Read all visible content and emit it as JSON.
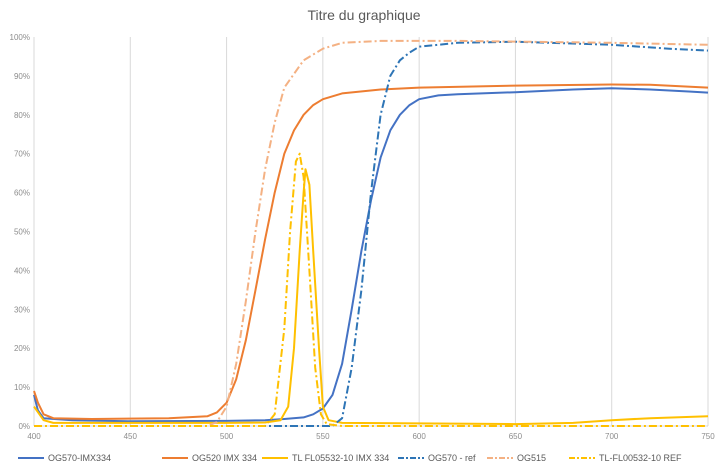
{
  "chart_data": {
    "type": "line",
    "title": "Titre du graphique",
    "xlabel": "",
    "ylabel": "",
    "xlim": [
      400,
      750
    ],
    "ylim": [
      0,
      100
    ],
    "x_ticks": [
      "400",
      "450",
      "500",
      "550",
      "600",
      "650",
      "700",
      "750"
    ],
    "y_ticks": [
      "0%",
      "10%",
      "20%",
      "30%",
      "40%",
      "50%",
      "60%",
      "70%",
      "80%",
      "90%",
      "100%"
    ],
    "grid": "vertical",
    "legend_position": "bottom",
    "series": [
      {
        "name": "OG570-IMX334",
        "color": "#4472c4",
        "dash": "solid",
        "points": [
          [
            400,
            8
          ],
          [
            402,
            4
          ],
          [
            405,
            2
          ],
          [
            420,
            1.5
          ],
          [
            450,
            1.2
          ],
          [
            500,
            1.3
          ],
          [
            520,
            1.5
          ],
          [
            530,
            1.8
          ],
          [
            540,
            2.2
          ],
          [
            545,
            3
          ],
          [
            550,
            4.5
          ],
          [
            555,
            8
          ],
          [
            560,
            16
          ],
          [
            565,
            30
          ],
          [
            570,
            45
          ],
          [
            575,
            58
          ],
          [
            580,
            69
          ],
          [
            585,
            76
          ],
          [
            590,
            80
          ],
          [
            595,
            82.5
          ],
          [
            600,
            84
          ],
          [
            610,
            85
          ],
          [
            620,
            85.3
          ],
          [
            650,
            85.8
          ],
          [
            680,
            86.5
          ],
          [
            700,
            86.8
          ],
          [
            720,
            86.5
          ],
          [
            740,
            86
          ],
          [
            750,
            85.7
          ]
        ]
      },
      {
        "name": "OG520 IMX 334",
        "color": "#ed7d31",
        "dash": "solid",
        "points": [
          [
            400,
            9
          ],
          [
            402,
            6
          ],
          [
            405,
            3
          ],
          [
            410,
            2
          ],
          [
            430,
            1.8
          ],
          [
            470,
            2
          ],
          [
            490,
            2.5
          ],
          [
            495,
            3.5
          ],
          [
            500,
            6
          ],
          [
            505,
            12
          ],
          [
            510,
            22
          ],
          [
            515,
            35
          ],
          [
            520,
            48
          ],
          [
            525,
            60
          ],
          [
            530,
            70
          ],
          [
            535,
            76
          ],
          [
            540,
            80
          ],
          [
            545,
            82.5
          ],
          [
            550,
            84
          ],
          [
            560,
            85.5
          ],
          [
            580,
            86.5
          ],
          [
            600,
            87
          ],
          [
            650,
            87.5
          ],
          [
            700,
            87.8
          ],
          [
            720,
            87.7
          ],
          [
            750,
            87
          ]
        ]
      },
      {
        "name": "TL FL05532-10 IMX 334",
        "color": "#ffc000",
        "dash": "solid",
        "points": [
          [
            400,
            5
          ],
          [
            405,
            1.5
          ],
          [
            410,
            0.8
          ],
          [
            500,
            0.8
          ],
          [
            520,
            0.9
          ],
          [
            528,
            1.5
          ],
          [
            532,
            5
          ],
          [
            535,
            20
          ],
          [
            538,
            45
          ],
          [
            540,
            60
          ],
          [
            541,
            66
          ],
          [
            543,
            62
          ],
          [
            545,
            45
          ],
          [
            548,
            20
          ],
          [
            550,
            5
          ],
          [
            553,
            1.5
          ],
          [
            560,
            0.8
          ],
          [
            650,
            0.5
          ],
          [
            680,
            0.8
          ],
          [
            700,
            1.5
          ],
          [
            720,
            2
          ],
          [
            750,
            2.5
          ]
        ]
      },
      {
        "name": "OG570 - ref",
        "color": "#2e75b6",
        "dash": "dashdot",
        "points": [
          [
            400,
            0
          ],
          [
            555,
            0
          ],
          [
            560,
            2
          ],
          [
            565,
            15
          ],
          [
            570,
            35
          ],
          [
            575,
            60
          ],
          [
            580,
            80
          ],
          [
            585,
            90
          ],
          [
            590,
            94
          ],
          [
            595,
            96
          ],
          [
            600,
            97.5
          ],
          [
            620,
            98.5
          ],
          [
            650,
            98.8
          ],
          [
            700,
            98
          ],
          [
            730,
            97
          ],
          [
            750,
            96.5
          ]
        ]
      },
      {
        "name": "OG515",
        "color": "#f4b183",
        "dash": "dashdot",
        "points": [
          [
            400,
            0
          ],
          [
            490,
            0
          ],
          [
            495,
            1
          ],
          [
            500,
            5
          ],
          [
            505,
            16
          ],
          [
            510,
            32
          ],
          [
            515,
            50
          ],
          [
            520,
            66
          ],
          [
            525,
            78
          ],
          [
            530,
            87
          ],
          [
            540,
            94
          ],
          [
            550,
            97
          ],
          [
            560,
            98.5
          ],
          [
            580,
            99
          ],
          [
            620,
            99
          ],
          [
            700,
            98.5
          ],
          [
            750,
            98
          ]
        ]
      },
      {
        "name": "TL-FL00532-10 REF",
        "color": "#ffc000",
        "dash": "dashdot",
        "points": [
          [
            400,
            0
          ],
          [
            520,
            0
          ],
          [
            525,
            3
          ],
          [
            530,
            25
          ],
          [
            533,
            50
          ],
          [
            536,
            68
          ],
          [
            538,
            70
          ],
          [
            540,
            64
          ],
          [
            543,
            40
          ],
          [
            546,
            15
          ],
          [
            549,
            3
          ],
          [
            552,
            0.5
          ],
          [
            560,
            0
          ],
          [
            750,
            0
          ]
        ]
      }
    ]
  }
}
